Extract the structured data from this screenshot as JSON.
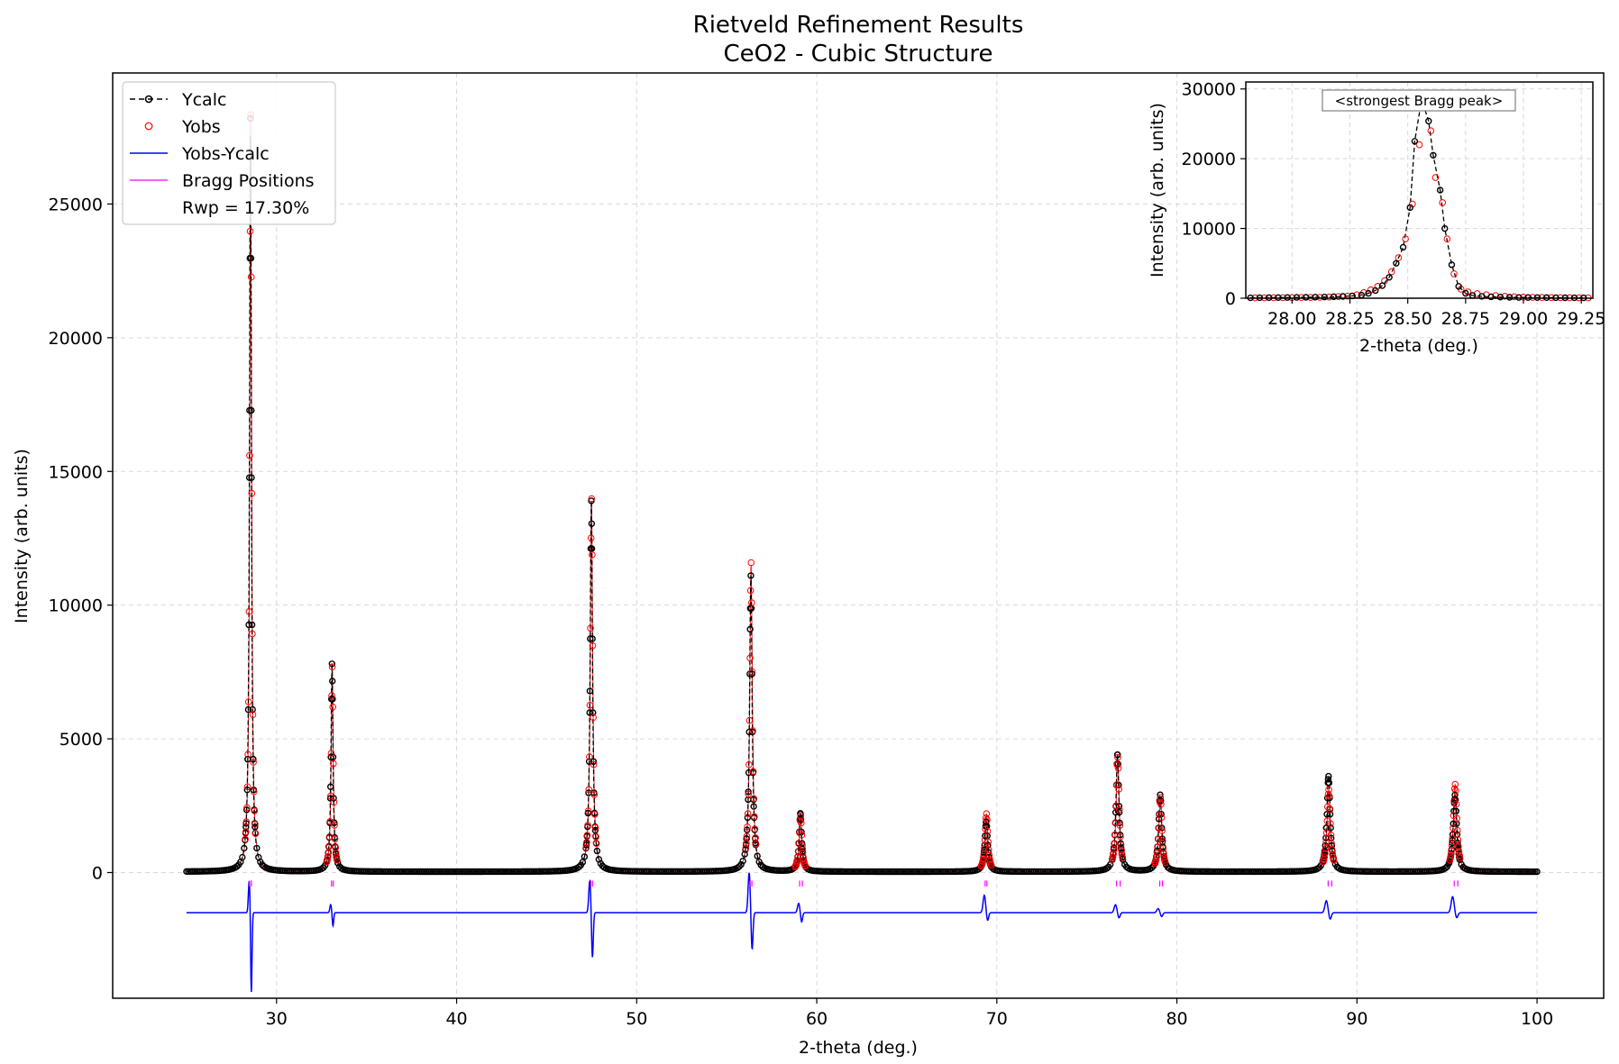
{
  "chart_data": [
    {
      "type": "line",
      "title": "Rietveld Refinement Results",
      "subtitle": "CeO2 - Cubic Structure",
      "xlabel": "2-theta (deg.)",
      "ylabel": "Intensity (arb. units)",
      "xlim": [
        20.9,
        103.7
      ],
      "ylim": [
        -4700,
        29900
      ],
      "xticks": [
        30,
        40,
        50,
        60,
        70,
        80,
        90,
        100
      ],
      "yticks": [
        0,
        5000,
        10000,
        15000,
        20000,
        25000
      ],
      "grid": true,
      "legend_position": "top-left",
      "rwp_label": "Rwp = 17.30%",
      "x_range": [
        25,
        100
      ],
      "peaks": [
        {
          "x": 28.55,
          "calc": 28200,
          "obs": 28400,
          "bragg": [
            28.5,
            28.6
          ],
          "diff_lo": -4500,
          "diff_hi": -300
        },
        {
          "x": 33.08,
          "calc": 7800,
          "obs": 7700,
          "bragg": [
            33.05,
            33.15
          ],
          "diff_lo": -2000,
          "diff_hi": -1200
        },
        {
          "x": 47.48,
          "calc": 13900,
          "obs": 14000,
          "bragg": [
            47.45,
            47.55
          ],
          "diff_lo": -3200,
          "diff_hi": -300
        },
        {
          "x": 56.34,
          "calc": 11100,
          "obs": 11600,
          "bragg": [
            56.3,
            56.4
          ],
          "diff_lo": -2900,
          "diff_hi": 0
        },
        {
          "x": 59.09,
          "calc": 2200,
          "obs": 2100,
          "bragg": [
            59.05,
            59.2
          ],
          "diff_lo": -1850,
          "diff_hi": -1150
        },
        {
          "x": 69.41,
          "calc": 1900,
          "obs": 2200,
          "bragg": [
            69.35,
            69.45
          ],
          "diff_lo": -1800,
          "diff_hi": -850
        },
        {
          "x": 76.7,
          "calc": 4400,
          "obs": 4300,
          "bragg": [
            76.65,
            76.85
          ],
          "diff_lo": -1700,
          "diff_hi": -1200
        },
        {
          "x": 79.07,
          "calc": 2900,
          "obs": 2800,
          "bragg": [
            79.05,
            79.2
          ],
          "diff_lo": -1650,
          "diff_hi": -1350
        },
        {
          "x": 88.42,
          "calc": 3600,
          "obs": 3100,
          "bragg": [
            88.4,
            88.6
          ],
          "diff_lo": -1750,
          "diff_hi": -1050
        },
        {
          "x": 95.44,
          "calc": 2900,
          "obs": 3300,
          "bragg": [
            95.4,
            95.6
          ],
          "diff_lo": -1700,
          "diff_hi": -900
        }
      ],
      "baseline": 30,
      "diff_offset": -1500,
      "series": [
        {
          "name": "Ycalc",
          "color": "#000000",
          "style": "dashed line with circle markers"
        },
        {
          "name": "Yobs",
          "color": "#ff0000",
          "style": "open circle markers"
        },
        {
          "name": "Yobs-Ycalc",
          "color": "#0000ff",
          "style": "solid line"
        },
        {
          "name": "Bragg Positions",
          "color": "#ff00ff",
          "style": "tick marks"
        }
      ]
    },
    {
      "type": "line",
      "xlabel": "2-theta (deg.)",
      "ylabel": "Intensity (arb. units)",
      "xlim": [
        27.8,
        29.3
      ],
      "ylim": [
        0,
        31000
      ],
      "xticks": [
        "28.00",
        "28.25",
        "28.50",
        "28.75",
        "29.00",
        "29.25"
      ],
      "yticks": [
        0,
        10000,
        20000,
        30000
      ],
      "grid": true,
      "annotation": "<strongest Bragg peak>",
      "calc_points": [
        [
          27.82,
          60
        ],
        [
          27.86,
          70
        ],
        [
          27.9,
          80
        ],
        [
          27.94,
          90
        ],
        [
          27.98,
          100
        ],
        [
          28.02,
          115
        ],
        [
          28.06,
          130
        ],
        [
          28.1,
          150
        ],
        [
          28.14,
          175
        ],
        [
          28.18,
          210
        ],
        [
          28.22,
          260
        ],
        [
          28.26,
          330
        ],
        [
          28.3,
          450
        ],
        [
          28.33,
          700
        ],
        [
          28.36,
          1100
        ],
        [
          28.39,
          1800
        ],
        [
          28.42,
          3000
        ],
        [
          28.45,
          5000
        ],
        [
          28.48,
          7300
        ],
        [
          28.51,
          13000
        ],
        [
          28.53,
          22500
        ],
        [
          28.56,
          28500
        ],
        [
          28.59,
          25400
        ],
        [
          28.61,
          20500
        ],
        [
          28.64,
          15500
        ],
        [
          28.66,
          10000
        ],
        [
          28.69,
          4800
        ],
        [
          28.72,
          1700
        ],
        [
          28.75,
          700
        ],
        [
          28.78,
          400
        ],
        [
          28.82,
          270
        ],
        [
          28.86,
          200
        ],
        [
          28.9,
          160
        ],
        [
          28.94,
          130
        ],
        [
          28.98,
          110
        ],
        [
          29.02,
          100
        ],
        [
          29.06,
          90
        ],
        [
          29.1,
          80
        ],
        [
          29.14,
          70
        ],
        [
          29.18,
          65
        ],
        [
          29.22,
          60
        ],
        [
          29.26,
          55
        ]
      ],
      "obs_points": [
        [
          27.84,
          50
        ],
        [
          27.88,
          60
        ],
        [
          27.92,
          70
        ],
        [
          27.96,
          80
        ],
        [
          28.0,
          90
        ],
        [
          28.04,
          100
        ],
        [
          28.08,
          110
        ],
        [
          28.12,
          130
        ],
        [
          28.16,
          170
        ],
        [
          28.2,
          240
        ],
        [
          28.24,
          300
        ],
        [
          28.28,
          500
        ],
        [
          28.31,
          800
        ],
        [
          28.34,
          1200
        ],
        [
          28.37,
          1700
        ],
        [
          28.4,
          2500
        ],
        [
          28.43,
          3800
        ],
        [
          28.46,
          5800
        ],
        [
          28.49,
          8500
        ],
        [
          28.52,
          13500
        ],
        [
          28.55,
          22000
        ],
        [
          28.57,
          27500
        ],
        [
          28.6,
          24000
        ],
        [
          28.62,
          17300
        ],
        [
          28.65,
          13700
        ],
        [
          28.67,
          8500
        ],
        [
          28.7,
          3500
        ],
        [
          28.73,
          1300
        ],
        [
          28.76,
          900
        ],
        [
          28.8,
          650
        ],
        [
          28.84,
          500
        ],
        [
          28.88,
          380
        ],
        [
          28.92,
          280
        ],
        [
          28.96,
          200
        ],
        [
          29.0,
          150
        ],
        [
          29.04,
          120
        ],
        [
          29.08,
          100
        ],
        [
          29.12,
          90
        ],
        [
          29.16,
          80
        ],
        [
          29.2,
          70
        ],
        [
          29.24,
          60
        ],
        [
          29.28,
          55
        ]
      ]
    }
  ]
}
